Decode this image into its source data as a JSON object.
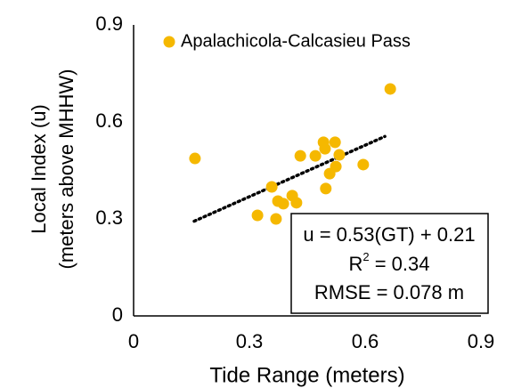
{
  "chart_data": {
    "type": "scatter",
    "x_label": "Tide Range (meters)",
    "y_label_line1": "Local Index (u)",
    "y_label_line2": "(meters above MHHW)",
    "xlim": [
      0,
      0.9
    ],
    "ylim": [
      0,
      0.9
    ],
    "xticks": [
      0,
      0.3,
      0.6,
      0.9
    ],
    "yticks": [
      0,
      0.3,
      0.6,
      0.9
    ],
    "legend": "top-left",
    "series": [
      {
        "name": "Apalachicola-Calcasieu Pass",
        "color": "#f5b800",
        "x": [
          0.159,
          0.665,
          0.321,
          0.369,
          0.358,
          0.374,
          0.388,
          0.411,
          0.422,
          0.432,
          0.471,
          0.492,
          0.496,
          0.522,
          0.533,
          0.498,
          0.508,
          0.524,
          0.595
        ],
        "values": [
          0.487,
          0.702,
          0.311,
          0.3,
          0.399,
          0.355,
          0.347,
          0.372,
          0.35,
          0.495,
          0.495,
          0.537,
          0.517,
          0.537,
          0.498,
          0.394,
          0.44,
          0.462,
          0.468
        ]
      }
    ],
    "trendline": {
      "x": [
        0.157,
        0.651
      ],
      "values": [
        0.293,
        0.555
      ]
    },
    "annotation": {
      "line1": "u = 0.53(GT) + 0.21",
      "r2_base": "R",
      "r2_sup": "2",
      "r2_rest": " = 0.34",
      "line3": "RMSE = 0.078 m"
    }
  }
}
